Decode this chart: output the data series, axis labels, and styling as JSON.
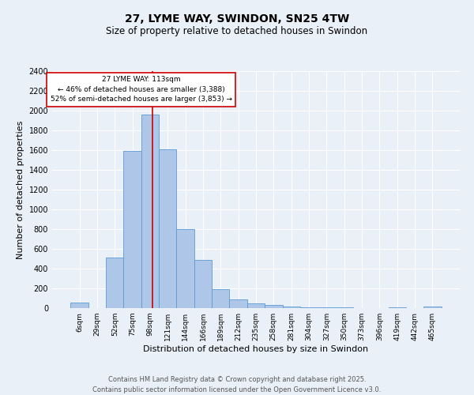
{
  "title1": "27, LYME WAY, SWINDON, SN25 4TW",
  "title2": "Size of property relative to detached houses in Swindon",
  "xlabel": "Distribution of detached houses by size in Swindon",
  "ylabel": "Number of detached properties",
  "categories": [
    "6sqm",
    "29sqm",
    "52sqm",
    "75sqm",
    "98sqm",
    "121sqm",
    "144sqm",
    "166sqm",
    "189sqm",
    "212sqm",
    "235sqm",
    "258sqm",
    "281sqm",
    "304sqm",
    "327sqm",
    "350sqm",
    "373sqm",
    "396sqm",
    "419sqm",
    "442sqm",
    "465sqm"
  ],
  "values": [
    55,
    0,
    510,
    1590,
    1960,
    1610,
    800,
    490,
    195,
    90,
    45,
    30,
    15,
    10,
    5,
    5,
    0,
    0,
    5,
    0,
    15
  ],
  "bar_color": "#aec6e8",
  "bar_edge_color": "#5b9bd5",
  "bg_color": "#eaf0f8",
  "grid_color": "#ffffff",
  "vline_color": "#cc0000",
  "annotation_title": "27 LYME WAY: 113sqm",
  "annotation_line1": "← 46% of detached houses are smaller (3,388)",
  "annotation_line2": "52% of semi-detached houses are larger (3,853) →",
  "annotation_box_color": "#ffffff",
  "annotation_box_edge": "#cc0000",
  "ylim": [
    0,
    2400
  ],
  "yticks": [
    0,
    200,
    400,
    600,
    800,
    1000,
    1200,
    1400,
    1600,
    1800,
    2000,
    2200,
    2400
  ],
  "footer1": "Contains HM Land Registry data © Crown copyright and database right 2025.",
  "footer2": "Contains public sector information licensed under the Open Government Licence v3.0."
}
